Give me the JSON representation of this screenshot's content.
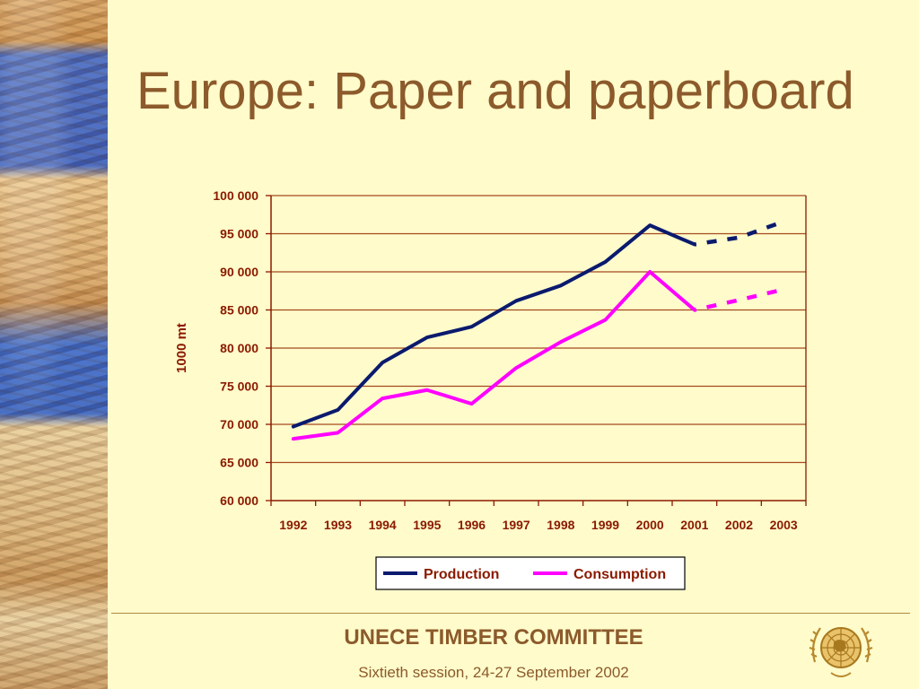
{
  "slide": {
    "title": "Europe: Paper and paperboard",
    "footer_title": "UNECE TIMBER COMMITTEE",
    "footer_subtitle": "Sixtieth session, 24-27 September 2002"
  },
  "chart_data": {
    "type": "line",
    "ylabel": "1000 mt",
    "xlabel": "",
    "ylim": [
      60000,
      100000
    ],
    "yticks": [
      60000,
      65000,
      70000,
      75000,
      80000,
      85000,
      90000,
      95000,
      100000
    ],
    "ytick_labels": [
      "60 000",
      "65 000",
      "70 000",
      "75 000",
      "80 000",
      "85 000",
      "90 000",
      "95 000",
      "100 000"
    ],
    "categories": [
      "1992",
      "1993",
      "1994",
      "1995",
      "1996",
      "1997",
      "1998",
      "1999",
      "2000",
      "2001",
      "2002",
      "2003"
    ],
    "grid": true,
    "legend": "bottom",
    "series": [
      {
        "name": "Production",
        "color": "#0A1A6E",
        "values": [
          69700,
          71900,
          78100,
          81400,
          82800,
          86200,
          88200,
          91300,
          96100,
          93600,
          94500,
          96600
        ],
        "forecast_from_index": 9
      },
      {
        "name": "Consumption",
        "color": "#FF00FF",
        "values": [
          68100,
          68900,
          73400,
          74500,
          72700,
          77400,
          80800,
          83700,
          90000,
          85000,
          86300,
          87700
        ],
        "forecast_from_index": 9
      }
    ],
    "colors": {
      "text": "#8B1A00",
      "grid": "#A34A1F",
      "axis": "#8B1A00"
    }
  }
}
